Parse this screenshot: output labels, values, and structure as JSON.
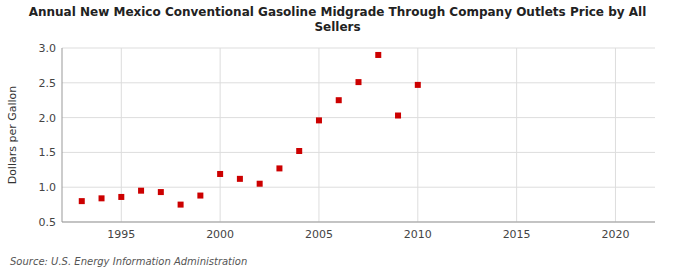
{
  "chart_data": {
    "type": "scatter",
    "title": "Annual New Mexico Conventional Gasoline Midgrade Through Company Outlets Price by All\nSellers",
    "y_label": "Dollars per Gallon",
    "annotations": [
      "Source: U.S. Energy Information Administration"
    ],
    "x": [
      1993,
      1994,
      1995,
      1996,
      1997,
      1998,
      1999,
      2000,
      2001,
      2002,
      2003,
      2004,
      2005,
      2006,
      2007,
      2008,
      2009,
      2010
    ],
    "values": [
      0.8,
      0.84,
      0.86,
      0.95,
      0.93,
      0.75,
      0.88,
      1.19,
      1.12,
      1.05,
      1.27,
      1.52,
      1.96,
      2.25,
      2.51,
      2.9,
      2.03,
      2.47
    ],
    "color": "#cc0000",
    "marker": "square",
    "xlim": [
      1992,
      2022
    ],
    "ylim": [
      0.5,
      3.0
    ],
    "xticks": [
      1995,
      2000,
      2005,
      2010,
      2015,
      2020
    ],
    "yticks": [
      0.5,
      {
        "value": 1,
        "label": "1.0"
      },
      1.5,
      {
        "value": 2,
        "label": "2.0"
      },
      2.5,
      {
        "value": 3,
        "label": "3.0"
      }
    ],
    "grid": true
  }
}
